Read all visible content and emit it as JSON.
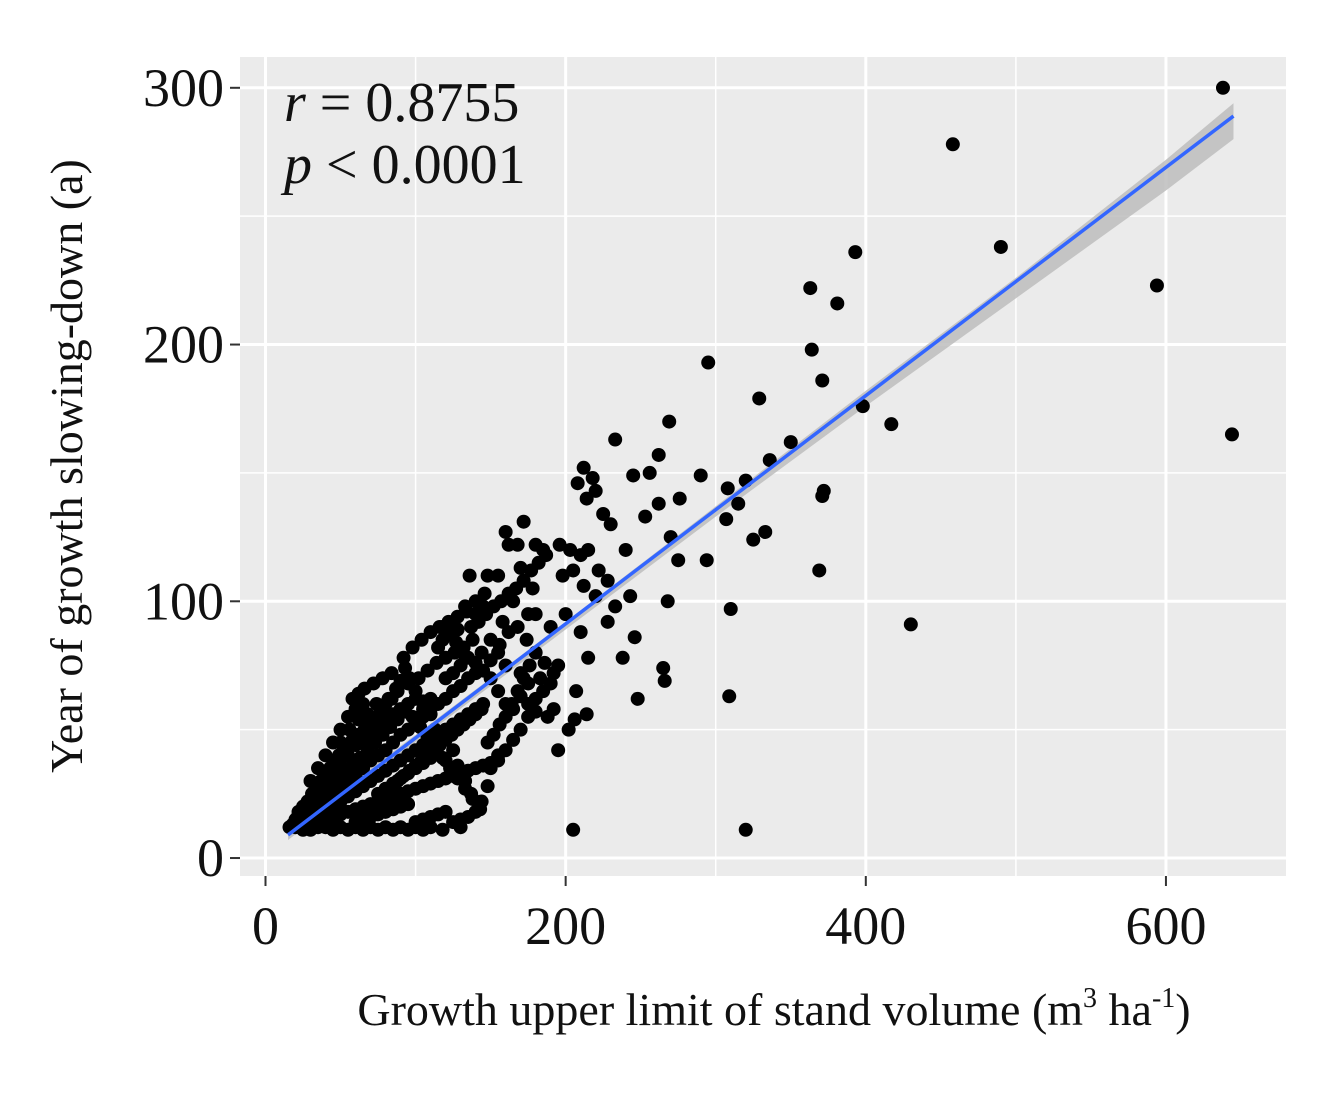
{
  "chart_data": {
    "type": "scatter",
    "title": "",
    "xlabel": "Growth upper limit of stand volume (m",
    "xlabel_unit_sup": "3",
    "xlabel_mid": " ha",
    "xlabel_unit_sup2": "-1",
    "xlabel_end": ")",
    "ylabel": "Year of growth slowing-down (a)",
    "xlim": [
      -17,
      680
    ],
    "ylim": [
      -7,
      312
    ],
    "x_ticks": [
      0,
      200,
      400,
      600
    ],
    "x_tick_labels": [
      "0",
      "200",
      "400",
      "600"
    ],
    "y_ticks": [
      0,
      100,
      200,
      300
    ],
    "y_tick_labels": [
      "0",
      "100",
      "200",
      "300"
    ],
    "grid": true,
    "annotations": {
      "r_symbol": "r",
      "r_text": " = 0.8755",
      "p_symbol": "p",
      "p_text": " < 0.0001"
    },
    "colors": {
      "panel": "#ebebeb",
      "grid": "#ffffff",
      "points": "#000000",
      "fit_line": "#3366ff",
      "ci_band": "#bdbdbd"
    },
    "fit_line": {
      "x": [
        15,
        645
      ],
      "y": [
        9,
        289
      ]
    },
    "ci_band": {
      "x": [
        15,
        100,
        200,
        300,
        400,
        500,
        600,
        645
      ],
      "lower": [
        7,
        45,
        89,
        133,
        176,
        218,
        260,
        280
      ],
      "upper": [
        11,
        48,
        92,
        137,
        182,
        226,
        272,
        294
      ]
    },
    "points": [
      [
        638,
        300
      ],
      [
        458,
        278
      ],
      [
        490,
        238
      ],
      [
        393,
        236
      ],
      [
        363,
        222
      ],
      [
        381,
        216
      ],
      [
        594,
        223
      ],
      [
        644,
        165
      ],
      [
        295,
        193
      ],
      [
        364,
        198
      ],
      [
        329,
        179
      ],
      [
        371,
        186
      ],
      [
        398,
        176
      ],
      [
        417,
        169
      ],
      [
        430,
        91
      ],
      [
        371,
        141
      ],
      [
        369,
        112
      ],
      [
        372,
        143
      ],
      [
        350,
        162
      ],
      [
        336,
        155
      ],
      [
        320,
        147
      ],
      [
        308,
        144
      ],
      [
        315,
        138
      ],
      [
        325,
        124
      ],
      [
        333,
        127
      ],
      [
        307,
        132
      ],
      [
        310,
        97
      ],
      [
        309,
        63
      ],
      [
        320,
        11
      ],
      [
        205,
        11
      ],
      [
        269,
        170
      ],
      [
        233,
        163
      ],
      [
        262,
        157
      ],
      [
        245,
        149
      ],
      [
        256,
        150
      ],
      [
        276,
        140
      ],
      [
        290,
        149
      ],
      [
        262,
        138
      ],
      [
        253,
        133
      ],
      [
        270,
        125
      ],
      [
        275,
        116
      ],
      [
        294,
        116
      ],
      [
        225,
        134
      ],
      [
        230,
        130
      ],
      [
        240,
        120
      ],
      [
        212,
        152
      ],
      [
        218,
        148
      ],
      [
        214,
        140
      ],
      [
        208,
        146
      ],
      [
        220,
        143
      ],
      [
        203,
        120
      ],
      [
        196,
        122
      ],
      [
        210,
        118
      ],
      [
        215,
        120
      ],
      [
        222,
        112
      ],
      [
        228,
        108
      ],
      [
        198,
        110
      ],
      [
        205,
        112
      ],
      [
        212,
        106
      ],
      [
        220,
        102
      ],
      [
        233,
        98
      ],
      [
        228,
        92
      ],
      [
        243,
        102
      ],
      [
        246,
        86
      ],
      [
        265,
        74
      ],
      [
        268,
        100
      ],
      [
        248,
        62
      ],
      [
        266,
        69
      ],
      [
        238,
        78
      ],
      [
        215,
        78
      ],
      [
        210,
        88
      ],
      [
        200,
        95
      ],
      [
        190,
        90
      ],
      [
        185,
        120
      ],
      [
        180,
        122
      ],
      [
        178,
        105
      ],
      [
        175,
        95
      ],
      [
        170,
        113
      ],
      [
        168,
        122
      ],
      [
        162,
        122
      ],
      [
        160,
        127
      ],
      [
        172,
        131
      ],
      [
        155,
        110
      ],
      [
        148,
        110
      ],
      [
        145,
        98
      ],
      [
        140,
        95
      ],
      [
        136,
        110
      ],
      [
        133,
        98
      ],
      [
        128,
        89
      ],
      [
        122,
        91
      ],
      [
        118,
        90
      ],
      [
        165,
        100
      ],
      [
        158,
        92
      ],
      [
        150,
        85
      ],
      [
        155,
        80
      ],
      [
        160,
        75
      ],
      [
        170,
        72
      ],
      [
        175,
        68
      ],
      [
        180,
        62
      ],
      [
        183,
        70
      ],
      [
        188,
        55
      ],
      [
        192,
        58
      ],
      [
        195,
        42
      ],
      [
        202,
        50
      ],
      [
        206,
        54
      ],
      [
        214,
        56
      ],
      [
        207,
        65
      ],
      [
        175,
        55
      ],
      [
        170,
        50
      ],
      [
        165,
        46
      ],
      [
        160,
        42
      ],
      [
        155,
        40
      ],
      [
        150,
        35
      ],
      [
        148,
        28
      ],
      [
        144,
        22
      ],
      [
        140,
        18
      ],
      [
        137,
        25
      ],
      [
        133,
        30
      ],
      [
        128,
        36
      ],
      [
        125,
        42
      ],
      [
        120,
        38
      ],
      [
        116,
        44
      ],
      [
        113,
        50
      ],
      [
        110,
        56
      ],
      [
        105,
        61
      ],
      [
        100,
        65
      ],
      [
        96,
        70
      ],
      [
        93,
        74
      ],
      [
        90,
        69
      ],
      [
        87,
        66
      ],
      [
        84,
        62
      ],
      [
        80,
        60
      ],
      [
        77,
        57
      ],
      [
        74,
        55
      ],
      [
        70,
        52
      ],
      [
        66,
        50
      ],
      [
        62,
        48
      ],
      [
        58,
        46
      ],
      [
        55,
        44
      ],
      [
        52,
        42
      ],
      [
        49,
        40
      ],
      [
        46,
        38
      ],
      [
        43,
        35
      ],
      [
        40,
        32
      ],
      [
        37,
        30
      ],
      [
        34,
        28
      ],
      [
        31,
        25
      ],
      [
        28,
        22
      ],
      [
        25,
        20
      ],
      [
        22,
        18
      ],
      [
        20,
        15
      ],
      [
        18,
        13
      ],
      [
        16,
        12
      ],
      [
        20,
        12
      ],
      [
        25,
        11
      ],
      [
        30,
        11
      ],
      [
        35,
        12
      ],
      [
        40,
        12
      ],
      [
        45,
        11
      ],
      [
        50,
        12
      ],
      [
        55,
        11
      ],
      [
        60,
        12
      ],
      [
        65,
        11
      ],
      [
        70,
        12
      ],
      [
        75,
        11
      ],
      [
        80,
        12
      ],
      [
        85,
        11
      ],
      [
        90,
        12
      ],
      [
        95,
        11
      ],
      [
        100,
        12
      ],
      [
        105,
        11
      ],
      [
        110,
        12
      ],
      [
        118,
        11
      ],
      [
        130,
        12
      ],
      [
        25,
        15
      ],
      [
        30,
        18
      ],
      [
        35,
        20
      ],
      [
        40,
        22
      ],
      [
        45,
        25
      ],
      [
        50,
        27
      ],
      [
        55,
        30
      ],
      [
        60,
        32
      ],
      [
        65,
        35
      ],
      [
        70,
        38
      ],
      [
        75,
        40
      ],
      [
        80,
        42
      ],
      [
        85,
        45
      ],
      [
        90,
        48
      ],
      [
        95,
        50
      ],
      [
        100,
        52
      ],
      [
        105,
        55
      ],
      [
        110,
        58
      ],
      [
        115,
        60
      ],
      [
        120,
        62
      ],
      [
        125,
        65
      ],
      [
        130,
        67
      ],
      [
        135,
        70
      ],
      [
        140,
        72
      ],
      [
        30,
        14
      ],
      [
        35,
        16
      ],
      [
        40,
        18
      ],
      [
        45,
        20
      ],
      [
        50,
        22
      ],
      [
        55,
        24
      ],
      [
        60,
        26
      ],
      [
        65,
        28
      ],
      [
        70,
        30
      ],
      [
        75,
        32
      ],
      [
        80,
        34
      ],
      [
        85,
        36
      ],
      [
        90,
        38
      ],
      [
        95,
        40
      ],
      [
        100,
        42
      ],
      [
        105,
        44
      ],
      [
        110,
        46
      ],
      [
        115,
        48
      ],
      [
        120,
        50
      ],
      [
        125,
        52
      ],
      [
        130,
        54
      ],
      [
        135,
        56
      ],
      [
        140,
        58
      ],
      [
        145,
        60
      ],
      [
        40,
        15
      ],
      [
        45,
        16
      ],
      [
        50,
        17
      ],
      [
        55,
        18
      ],
      [
        60,
        19
      ],
      [
        65,
        20
      ],
      [
        70,
        21
      ],
      [
        75,
        22
      ],
      [
        80,
        23
      ],
      [
        85,
        24
      ],
      [
        90,
        25
      ],
      [
        95,
        26
      ],
      [
        100,
        27
      ],
      [
        105,
        28
      ],
      [
        110,
        29
      ],
      [
        115,
        30
      ],
      [
        120,
        31
      ],
      [
        125,
        32
      ],
      [
        130,
        33
      ],
      [
        135,
        34
      ],
      [
        140,
        35
      ],
      [
        145,
        36
      ],
      [
        150,
        37
      ],
      [
        155,
        38
      ],
      [
        60,
        14
      ],
      [
        65,
        15
      ],
      [
        70,
        16
      ],
      [
        75,
        17
      ],
      [
        80,
        18
      ],
      [
        85,
        19
      ],
      [
        90,
        20
      ],
      [
        95,
        21
      ],
      [
        100,
        14
      ],
      [
        105,
        15
      ],
      [
        110,
        16
      ],
      [
        115,
        17
      ],
      [
        120,
        18
      ],
      [
        125,
        14
      ],
      [
        130,
        15
      ],
      [
        135,
        16
      ],
      [
        30,
        30
      ],
      [
        35,
        35
      ],
      [
        40,
        40
      ],
      [
        45,
        45
      ],
      [
        50,
        50
      ],
      [
        55,
        55
      ],
      [
        60,
        58
      ],
      [
        65,
        60
      ],
      [
        35,
        25
      ],
      [
        40,
        28
      ],
      [
        45,
        32
      ],
      [
        50,
        36
      ],
      [
        55,
        40
      ],
      [
        60,
        44
      ],
      [
        65,
        46
      ],
      [
        70,
        48
      ],
      [
        75,
        50
      ],
      [
        80,
        54
      ],
      [
        85,
        56
      ],
      [
        90,
        58
      ],
      [
        95,
        60
      ],
      [
        100,
        62
      ],
      [
        105,
        58
      ],
      [
        110,
        62
      ],
      [
        28,
        18
      ],
      [
        33,
        21
      ],
      [
        38,
        24
      ],
      [
        43,
        27
      ],
      [
        48,
        30
      ],
      [
        53,
        33
      ],
      [
        58,
        36
      ],
      [
        63,
        39
      ],
      [
        68,
        42
      ],
      [
        73,
        45
      ],
      [
        78,
        48
      ],
      [
        83,
        51
      ],
      [
        88,
        54
      ],
      [
        93,
        57
      ],
      [
        98,
        55
      ],
      [
        103,
        51
      ],
      [
        108,
        47
      ],
      [
        113,
        43
      ],
      [
        118,
        39
      ],
      [
        123,
        35
      ],
      [
        128,
        31
      ],
      [
        133,
        27
      ],
      [
        138,
        23
      ],
      [
        143,
        19
      ],
      [
        50,
        45
      ],
      [
        56,
        50
      ],
      [
        62,
        54
      ],
      [
        68,
        56
      ],
      [
        74,
        60
      ],
      [
        82,
        62
      ],
      [
        88,
        65
      ],
      [
        95,
        68
      ],
      [
        102,
        70
      ],
      [
        108,
        73
      ],
      [
        114,
        76
      ],
      [
        120,
        78
      ],
      [
        126,
        80
      ],
      [
        132,
        82
      ],
      [
        138,
        85
      ],
      [
        144,
        80
      ],
      [
        150,
        77
      ],
      [
        156,
        83
      ],
      [
        162,
        88
      ],
      [
        168,
        90
      ],
      [
        174,
        85
      ],
      [
        180,
        80
      ],
      [
        186,
        76
      ],
      [
        192,
        72
      ],
      [
        120,
        70
      ],
      [
        125,
        72
      ],
      [
        130,
        75
      ],
      [
        135,
        78
      ],
      [
        140,
        76
      ],
      [
        145,
        73
      ],
      [
        150,
        70
      ],
      [
        155,
        65
      ],
      [
        160,
        60
      ],
      [
        165,
        58
      ],
      [
        170,
        63
      ],
      [
        175,
        60
      ],
      [
        180,
        57
      ],
      [
        185,
        65
      ],
      [
        190,
        68
      ],
      [
        195,
        75
      ],
      [
        115,
        82
      ],
      [
        118,
        85
      ],
      [
        122,
        87
      ],
      [
        127,
        84
      ],
      [
        131,
        80
      ],
      [
        137,
        90
      ],
      [
        142,
        92
      ],
      [
        147,
        95
      ],
      [
        152,
        98
      ],
      [
        157,
        100
      ],
      [
        162,
        103
      ],
      [
        167,
        105
      ],
      [
        172,
        108
      ],
      [
        177,
        112
      ],
      [
        182,
        115
      ],
      [
        187,
        118
      ],
      [
        88,
        30
      ],
      [
        92,
        32
      ],
      [
        96,
        34
      ],
      [
        100,
        36
      ],
      [
        104,
        38
      ],
      [
        108,
        40
      ],
      [
        112,
        42
      ],
      [
        116,
        44
      ],
      [
        120,
        46
      ],
      [
        124,
        48
      ],
      [
        128,
        50
      ],
      [
        132,
        52
      ],
      [
        136,
        54
      ],
      [
        140,
        56
      ],
      [
        144,
        58
      ],
      [
        148,
        45
      ],
      [
        152,
        48
      ],
      [
        156,
        52
      ],
      [
        160,
        55
      ],
      [
        164,
        60
      ],
      [
        168,
        65
      ],
      [
        172,
        70
      ],
      [
        176,
        75
      ],
      [
        180,
        95
      ],
      [
        58,
        62
      ],
      [
        62,
        64
      ],
      [
        66,
        66
      ],
      [
        72,
        68
      ],
      [
        78,
        70
      ],
      [
        84,
        72
      ],
      [
        92,
        78
      ],
      [
        98,
        82
      ],
      [
        104,
        85
      ],
      [
        110,
        88
      ],
      [
        116,
        90
      ],
      [
        122,
        92
      ],
      [
        128,
        94
      ],
      [
        134,
        96
      ],
      [
        140,
        100
      ],
      [
        146,
        103
      ],
      [
        75,
        25
      ],
      [
        80,
        27
      ],
      [
        85,
        29
      ],
      [
        90,
        31
      ],
      [
        95,
        33
      ],
      [
        100,
        35
      ],
      [
        105,
        37
      ],
      [
        110,
        39
      ]
    ]
  }
}
